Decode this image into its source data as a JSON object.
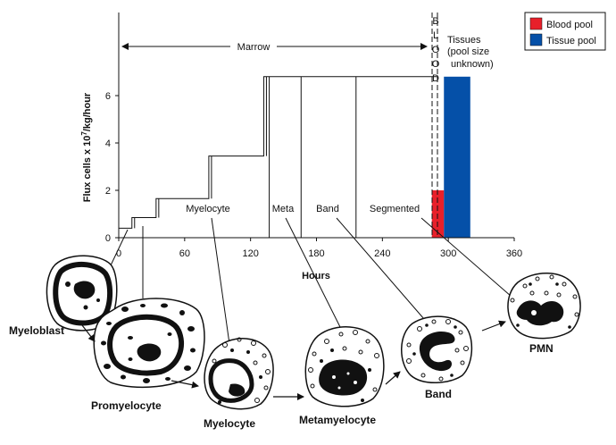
{
  "chart_data": {
    "type": "area",
    "ylabel": "Flux cells x 10",
    "ylabel_exponent": "7",
    "ylabel_unit": "/kg/hour",
    "xlabel": "Hours",
    "xlim": [
      0,
      360
    ],
    "ylim": [
      0,
      11
    ],
    "x_ticks": [
      0,
      60,
      120,
      180,
      240,
      300,
      360
    ],
    "y_ticks": [
      0,
      2,
      4,
      6
    ],
    "marrow_steps": [
      {
        "x0": 0,
        "x1": 12,
        "y": 0.4
      },
      {
        "x0": 12,
        "x1": 34,
        "y": 0.85
      },
      {
        "x0": 34,
        "x1": 82,
        "y": 1.65
      },
      {
        "x0": 82,
        "x1": 132,
        "y": 3.45
      },
      {
        "x0": 132,
        "x1": 290,
        "y": 6.8
      }
    ],
    "stage_dividers": [
      137,
      166,
      216
    ],
    "series": [
      {
        "name": "Blood pool",
        "x0": 285,
        "x1": 296,
        "value": 2.0,
        "color": "#e8202a"
      },
      {
        "name": "Tissue pool",
        "x0": 296,
        "x1": 320,
        "value": 6.8,
        "color": "#0550a8"
      }
    ],
    "legend_position": "top-right",
    "marrow_label": "Marrow",
    "blood_letters": [
      "B",
      "L",
      "O",
      "O",
      "D"
    ],
    "tissues_label_lines": [
      "Tissues",
      "(pool size",
      "unknown)"
    ],
    "stage_labels": {
      "myelocyte": "Myelocyte",
      "meta": "Meta",
      "band": "Band",
      "segmented": "Segmented"
    }
  },
  "cells": {
    "myeloblast": "Myeloblast",
    "promyelocyte": "Promyelocyte",
    "myelocyte": "Myelocyte",
    "metamyelocyte": "Metamyelocyte",
    "band": "Band",
    "pmn": "PMN"
  }
}
